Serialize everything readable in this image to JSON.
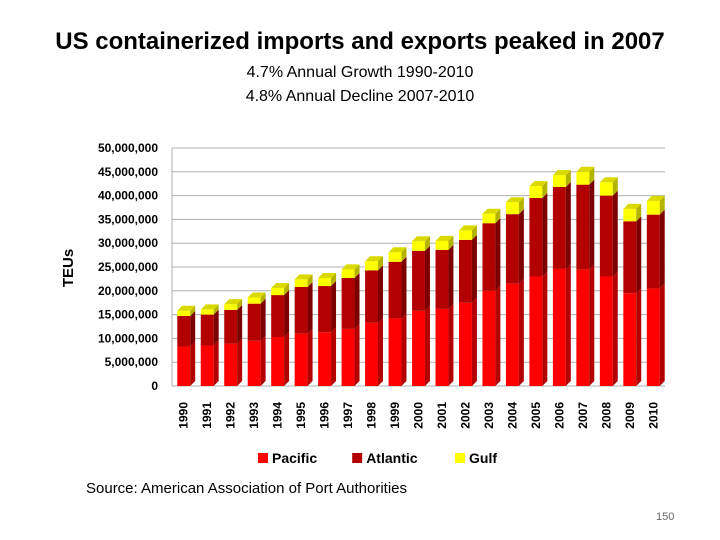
{
  "slide": {
    "title": "US containerized imports and exports peaked in 2007",
    "subtitle1": "4.7% Annual Growth 1990-2010",
    "subtitle2": "4.8% Annual Decline 2007-2010",
    "source": "Source: American Association of Port Authorities",
    "page_number": "150"
  },
  "chart_data": {
    "type": "bar",
    "stacked": true,
    "title": "",
    "xlabel": "",
    "ylabel": "TEUs",
    "ylim": [
      0,
      50000000
    ],
    "yticks": [
      "0",
      "5,000,000",
      "10,000,000",
      "15,000,000",
      "20,000,000",
      "25,000,000",
      "30,000,000",
      "35,000,000",
      "40,000,000",
      "45,000,000",
      "50,000,000"
    ],
    "grid": true,
    "legend": "bottom",
    "categories": [
      "1990",
      "1991",
      "1992",
      "1993",
      "1994",
      "1995",
      "1996",
      "1997",
      "1998",
      "1999",
      "2000",
      "2001",
      "2002",
      "2003",
      "2004",
      "2005",
      "2006",
      "2007",
      "2008",
      "2009",
      "2010"
    ],
    "series": [
      {
        "name": "Pacific",
        "color": "#ff0000",
        "values": [
          8300000,
          8500000,
          8900000,
          9500000,
          10300000,
          11000000,
          11300000,
          12000000,
          13300000,
          14200000,
          15800000,
          16200000,
          17500000,
          20000000,
          21500000,
          23000000,
          24600000,
          24500000,
          23000000,
          19500000,
          20500000
        ]
      },
      {
        "name": "Atlantic",
        "color": "#b30000",
        "values": [
          6400000,
          6500000,
          7100000,
          7800000,
          8800000,
          9800000,
          9700000,
          10700000,
          11000000,
          11900000,
          12600000,
          12400000,
          13200000,
          14200000,
          14600000,
          16500000,
          17200000,
          17800000,
          17000000,
          15100000,
          15500000
        ]
      },
      {
        "name": "Gulf",
        "color": "#ffff00",
        "values": [
          1100000,
          1100000,
          1200000,
          1300000,
          1500000,
          1600000,
          1700000,
          1800000,
          1900000,
          2000000,
          2000000,
          1900000,
          2000000,
          2000000,
          2500000,
          2500000,
          2500000,
          2700000,
          2800000,
          2600000,
          2900000
        ]
      }
    ]
  }
}
